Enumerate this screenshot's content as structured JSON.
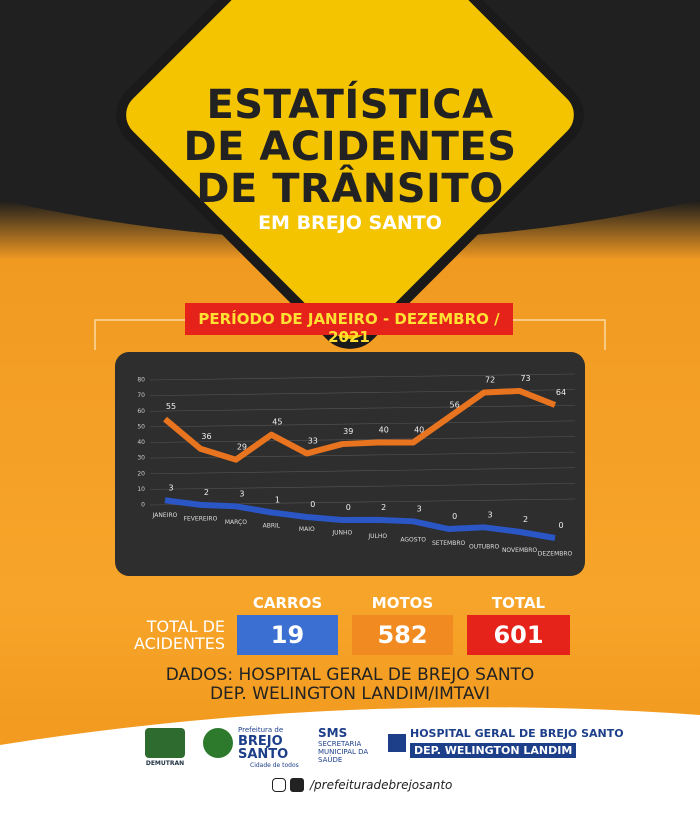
{
  "header": {
    "title_lines": [
      "ESTATÍSTICA",
      "DE ACIDENTES",
      "DE TRÂNSITO"
    ],
    "subtitle": "EM BREJO SANTO"
  },
  "period": "PERÍODO DE JANEIRO - DEZEMBRO / 2021",
  "chart_data": {
    "type": "line",
    "categories": [
      "JANEIRO",
      "FEVEREIRO",
      "MARÇO",
      "ABRIL",
      "MAIO",
      "JUNHO",
      "JULHO",
      "AGOSTO",
      "SETEMBRO",
      "OUTUBRO",
      "NOVEMBRO",
      "DEZEMBRO"
    ],
    "series": [
      {
        "color": "#e8741f",
        "values": [
          55,
          36,
          29,
          45,
          33,
          39,
          40,
          40,
          56,
          72,
          73,
          64
        ]
      },
      {
        "color": "#2a56c6",
        "values": [
          3,
          2,
          3,
          1,
          0,
          0,
          2,
          3,
          0,
          3,
          2,
          0
        ]
      }
    ],
    "ylim": [
      0,
      80
    ],
    "yticks": [
      0,
      10,
      20,
      30,
      40,
      50,
      60,
      70,
      80
    ],
    "grid": true
  },
  "totals": {
    "label": "TOTAL DE ACIDENTES",
    "items": [
      {
        "label": "CARROS",
        "value": 19
      },
      {
        "label": "MOTOS",
        "value": 582
      },
      {
        "label": "TOTAL",
        "value": 601
      }
    ]
  },
  "source": [
    "DADOS: HOSPITAL GERAL DE BREJO SANTO",
    "DEP. WELINGTON LANDIM/IMTAVI"
  ],
  "logos": {
    "demutran": "DEMUTRAN",
    "prefeitura_top": "Prefeitura de",
    "prefeitura_name": "BREJO SANTO",
    "prefeitura_slogan": "Cidade de todos",
    "sms": "SMS",
    "sms_full": "SECRETARIA MUNICIPAL DA SAÚDE",
    "hospital_1": "HOSPITAL GERAL DE BREJO SANTO",
    "hospital_2": "DEP. WELINGTON LANDIM"
  },
  "social": "/prefeituradebrejosanto"
}
